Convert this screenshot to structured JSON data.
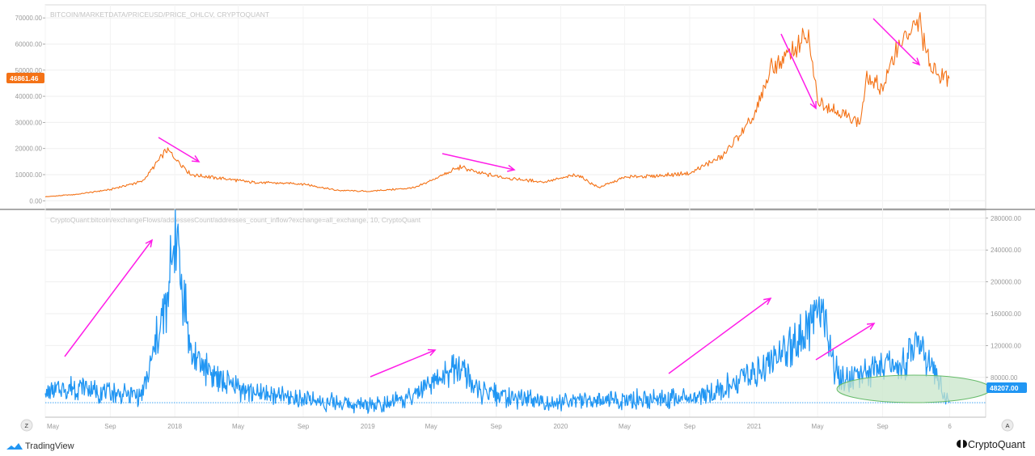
{
  "chart_data": [
    {
      "type": "line",
      "title": "BITCOIN/MARKETDATA/PRICEUSD/PRICE_OHLCV, CRYPTOQUANT",
      "y_ticks": [
        "0.00",
        "10000.00",
        "20000.00",
        "30000.00",
        "40000.00",
        "50000.00",
        "60000.00",
        "70000.00"
      ],
      "ylim": [
        -3000,
        75000
      ],
      "scale": "linear",
      "last_value_label": "46861.46",
      "series": [
        {
          "color": "#f47216",
          "x": [
            "2017-05",
            "2017-07",
            "2017-09",
            "2017-11",
            "2017-12-17",
            "2018-02",
            "2018-04",
            "2018-06",
            "2018-09",
            "2018-11",
            "2019-01",
            "2019-04",
            "2019-06-26",
            "2019-08",
            "2019-10",
            "2019-12",
            "2020-02",
            "2020-03-13",
            "2020-05",
            "2020-07",
            "2020-09",
            "2020-11",
            "2021-01",
            "2021-02",
            "2021-04-14",
            "2021-05",
            "2021-06",
            "2021-07-20",
            "2021-08",
            "2021-09",
            "2021-10",
            "2021-11-10",
            "2021-12",
            "2022-01-05"
          ],
          "y": [
            1500,
            2500,
            4300,
            7500,
            19500,
            10000,
            8500,
            7000,
            6500,
            4000,
            3600,
            5000,
            13000,
            10500,
            8500,
            7200,
            10000,
            5000,
            9000,
            9500,
            10500,
            17000,
            32000,
            50000,
            63000,
            38000,
            35000,
            30000,
            46000,
            44000,
            60000,
            68000,
            50000,
            46861
          ]
        }
      ],
      "annotation_arrows": 4
    },
    {
      "type": "line",
      "title": "CryptoQuant:bitcoin/exchangeFlows/addressesCount/addresses_count_inflow?exchange=all_exchange, 10, CryptoQuant",
      "y_ticks": [
        "80000.00",
        "120000.00",
        "160000.00",
        "200000.00",
        "240000.00",
        "280000.00"
      ],
      "ylim": [
        30000,
        290000
      ],
      "scale": "linear",
      "last_value_label": "48207.00",
      "series": [
        {
          "color": "#2196f3",
          "x": [
            "2017-05",
            "2017-07",
            "2017-09",
            "2017-11",
            "2017-12-20",
            "2018-01",
            "2018-02",
            "2018-04",
            "2018-06",
            "2018-09",
            "2019-01",
            "2019-04",
            "2019-06-26",
            "2019-08",
            "2019-10",
            "2020-01",
            "2020-03",
            "2020-06",
            "2020-09",
            "2020-11",
            "2021-01",
            "2021-03",
            "2021-05-10",
            "2021-06",
            "2021-07",
            "2021-08",
            "2021-10",
            "2021-11",
            "2021-12",
            "2022-01-05"
          ],
          "y": [
            60000,
            68000,
            60000,
            58000,
            180000,
            275000,
            110000,
            75000,
            60000,
            52000,
            45000,
            55000,
            95000,
            60000,
            55000,
            48000,
            52000,
            52000,
            55000,
            65000,
            85000,
            110000,
            170000,
            90000,
            75000,
            85000,
            95000,
            115000,
            95000,
            48207
          ]
        }
      ],
      "annotation_arrows": 4
    }
  ],
  "x_ticks": [
    "May",
    "Sep",
    "2018",
    "May",
    "Sep",
    "2019",
    "May",
    "Sep",
    "2020",
    "May",
    "Sep",
    "2021",
    "May",
    "Sep",
    "6"
  ],
  "corner_buttons": {
    "left": "Z",
    "right": "A"
  },
  "brand_left": "TradingView",
  "brand_right": "CryptoQuant",
  "colors": {
    "price_line": "#f47216",
    "inflow_line": "#2196f3",
    "arrows": "#ff1de8",
    "ellipse_fill": "#c8e6c9",
    "ellipse_stroke": "#66bb6a"
  }
}
